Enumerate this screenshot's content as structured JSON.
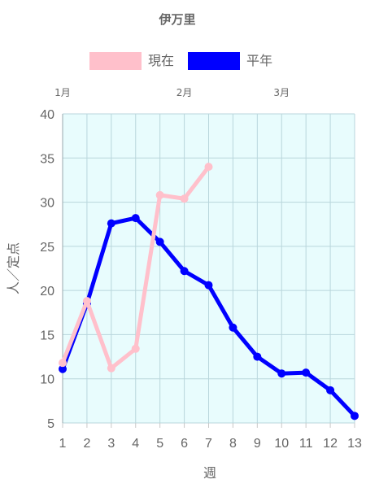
{
  "chart_data": {
    "type": "line",
    "title": "伊万里",
    "xlabel": "週",
    "ylabel": "人／定点",
    "x": [
      1,
      2,
      3,
      4,
      5,
      6,
      7,
      8,
      9,
      10,
      11,
      12,
      13
    ],
    "xlim": [
      1,
      13
    ],
    "ylim": [
      5,
      40
    ],
    "yticks": [
      5,
      10,
      15,
      20,
      25,
      30,
      35,
      40
    ],
    "month_labels": [
      {
        "label": "1月",
        "week": 1
      },
      {
        "label": "2月",
        "week": 6
      },
      {
        "label": "3月",
        "week": 10
      }
    ],
    "grid": true,
    "plot_background": "#e8fcfd",
    "grid_color": "#b9d6dc",
    "legend_position": "top",
    "series": [
      {
        "name": "現在",
        "color": "#ffc0cb",
        "values": [
          11.8,
          18.8,
          11.2,
          13.4,
          30.8,
          30.4,
          34.0,
          null,
          null,
          null,
          null,
          null,
          null
        ]
      },
      {
        "name": "平年",
        "color": "#0000ff",
        "values": [
          11.1,
          18.5,
          27.6,
          28.2,
          25.5,
          22.2,
          20.6,
          15.8,
          12.5,
          10.6,
          10.7,
          8.7,
          5.8
        ]
      }
    ]
  }
}
